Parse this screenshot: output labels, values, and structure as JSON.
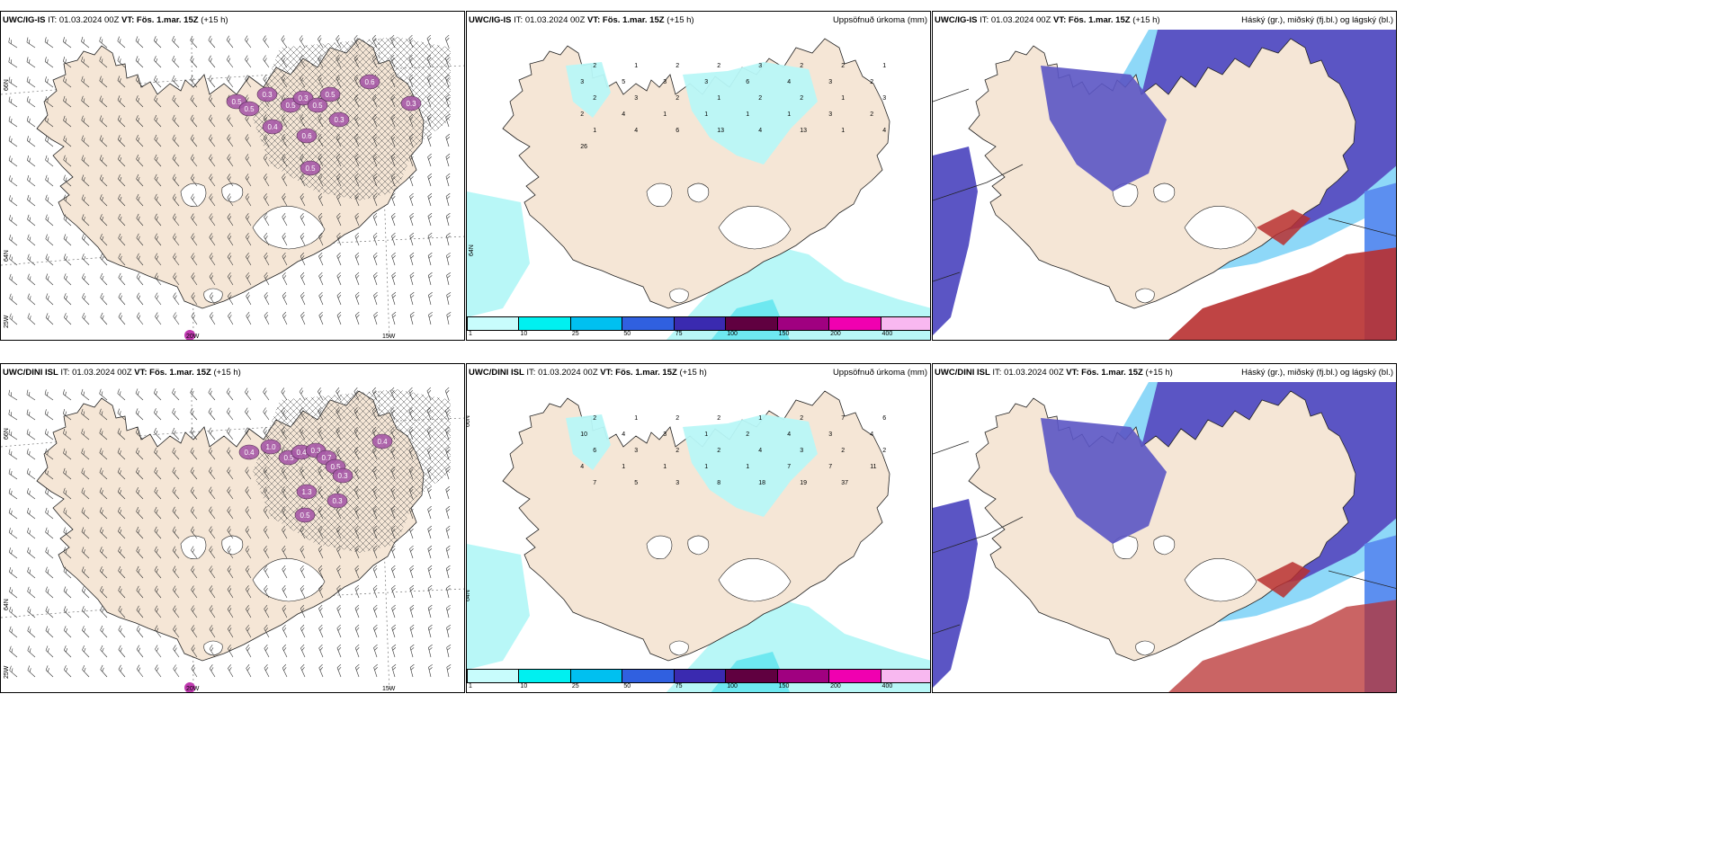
{
  "rows": [
    {
      "model": "UWC/IG-IS",
      "it_label": "IT:",
      "it_value": "01.03.2024 00Z",
      "vt_label": "VT:",
      "vt_value": "Fös. 1.mar. 15Z",
      "lead": "(+15 h)"
    },
    {
      "model": "UWC/DINI ISL",
      "it_label": "IT:",
      "it_value": "01.03.2024 00Z",
      "vt_label": "VT:",
      "vt_value": "Fös. 1.mar. 15Z",
      "lead": "(+15 h)"
    }
  ],
  "precip_title": "Uppsöfnuð úrkoma (mm)",
  "cloud_title": "Háský (gr.), miðský (fj.bl.) og lágský (bl.)",
  "axis": {
    "lat_66": "66N",
    "lat_64": "64N",
    "lon_25": "25W",
    "lon_20": "20W",
    "lon_15": "15W"
  },
  "colorbar": {
    "ticks": [
      "1",
      "10",
      "25",
      "50",
      "75",
      "100",
      "150",
      "200",
      "400"
    ],
    "colors": [
      "#c8fcfc",
      "#00f0f0",
      "#00c0f0",
      "#3060e0",
      "#3a2ab0",
      "#600040",
      "#a00080",
      "#f000b0",
      "#f8b8f0"
    ]
  },
  "colors": {
    "land": "#f5e6d6",
    "precip_light": "#b8f7f7",
    "precip_mid": "#6ee8f0",
    "cloud_high": "#5b55c4",
    "cloud_mid": "#5c8ff0",
    "cloud_low": "#8ed8f8",
    "cloud_red": "#b83030"
  },
  "snow_labels_top": [
    "0.5",
    "0.5",
    "0.3",
    "0.4",
    "0.5",
    "0.3",
    "0.5",
    "0.6",
    "0.5",
    "0.3",
    "0.5",
    "0.6",
    "0.3"
  ],
  "snow_labels_bottom": [
    "0.4",
    "1.0",
    "0.5",
    "0.4",
    "0.3",
    "0.7",
    "0.5",
    "0.3",
    "1.3",
    "0.3",
    "0.5",
    "0.4"
  ],
  "precip_values_top": [
    "2",
    "1",
    "2",
    "2",
    "3",
    "2",
    "2",
    "1",
    "3",
    "5",
    "3",
    "3",
    "6",
    "4",
    "3",
    "2",
    "2",
    "3",
    "2",
    "1",
    "2",
    "2",
    "1",
    "3",
    "2",
    "4",
    "1",
    "1",
    "1",
    "1",
    "3",
    "2",
    "1",
    "4",
    "6",
    "13",
    "4",
    "13",
    "1",
    "4",
    "26"
  ],
  "precip_values_bottom": [
    "2",
    "1",
    "2",
    "2",
    "1",
    "2",
    "7",
    "6",
    "10",
    "4",
    "3",
    "1",
    "2",
    "4",
    "3",
    "4",
    "6",
    "3",
    "2",
    "2",
    "4",
    "3",
    "2",
    "2",
    "4",
    "1",
    "1",
    "1",
    "1",
    "7",
    "7",
    "11",
    "7",
    "5",
    "3",
    "8",
    "18",
    "19",
    "37"
  ]
}
